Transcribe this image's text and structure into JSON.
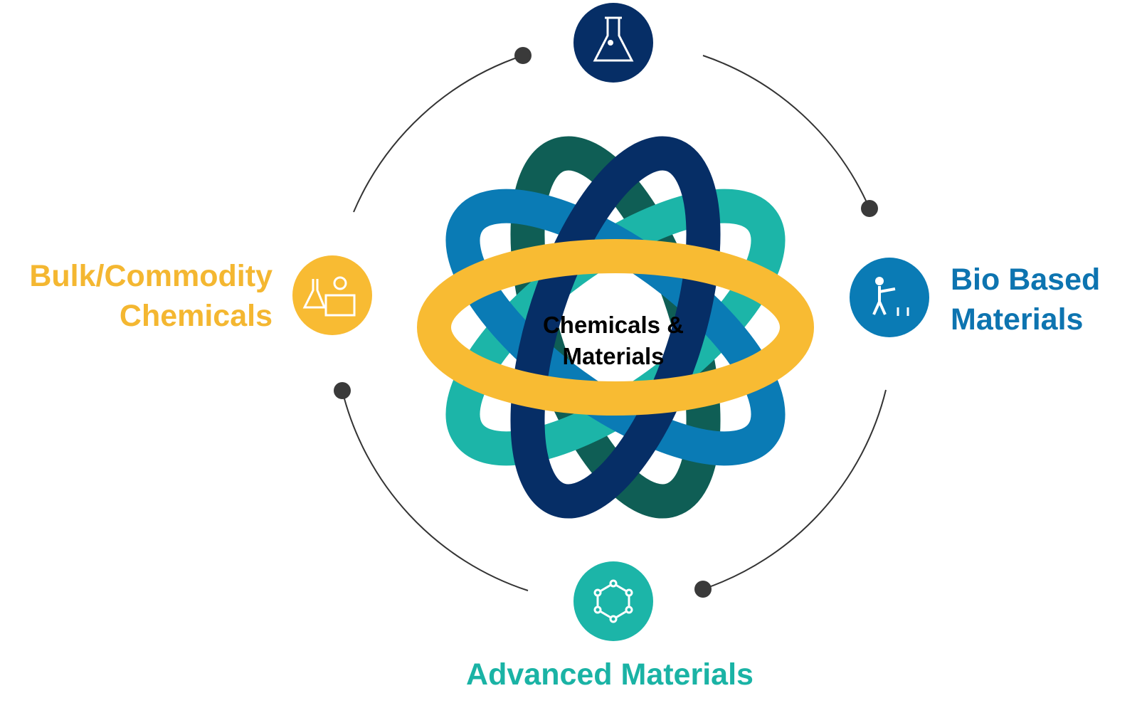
{
  "center": {
    "lines": [
      "Chemicals &",
      "Materials"
    ]
  },
  "nodes": [
    {
      "lines": [
        "Bulk/Commodity",
        "Chemicals"
      ]
    },
    {
      "lines": [
        "Bio Based",
        "Materials"
      ]
    },
    {
      "lines": [
        "Advanced Materials"
      ]
    }
  ]
}
